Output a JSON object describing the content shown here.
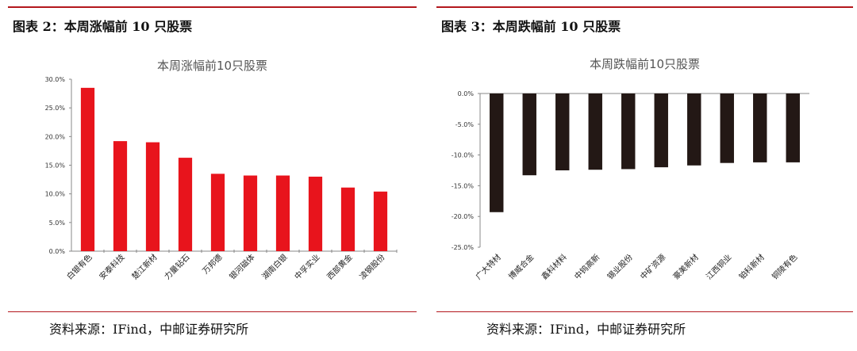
{
  "left_panel": {
    "figure_title": "图表 2：本周涨幅前 10 只股票",
    "source": "资料来源：IFind，中邮证券研究所"
  },
  "right_panel": {
    "figure_title": "图表 3：本周跌幅前 10 只股票",
    "source": "资料来源：IFind，中邮证券研究所"
  },
  "colors": {
    "rule": "#b3171d",
    "up_bar": "#e8141c",
    "down_bar": "#231815"
  },
  "chart_data": [
    {
      "type": "bar",
      "title": "本周涨幅前10只股票",
      "categories": [
        "白银有色",
        "安泰科技",
        "楚江新材",
        "力量钻石",
        "万邦德",
        "银河磁体",
        "湖南白银",
        "中孚实业",
        "西部黄金",
        "凌钢股份"
      ],
      "values": [
        28.5,
        19.2,
        19.0,
        16.3,
        13.5,
        13.2,
        13.2,
        13.0,
        11.1,
        10.4
      ],
      "ylim": [
        0,
        30
      ],
      "yticks": [
        "30.0%",
        "25.0%",
        "20.0%",
        "15.0%",
        "10.0%",
        "5.0%",
        "0.0%"
      ],
      "xlabel": "",
      "ylabel": "",
      "grid": false,
      "legend": false
    },
    {
      "type": "bar",
      "title": "本周跌幅前10只股票",
      "categories": [
        "广大特材",
        "博威合金",
        "鑫科材料",
        "中钨高新",
        "锡业股份",
        "中矿资源",
        "豪美新材",
        "江西铜业",
        "铂科新材",
        "铜陵有色"
      ],
      "values": [
        -19.3,
        -13.3,
        -12.5,
        -12.4,
        -12.3,
        -12.0,
        -11.7,
        -11.3,
        -11.2,
        -11.2
      ],
      "ylim": [
        -25,
        0
      ],
      "yticks": [
        "0.0%",
        "-5.0%",
        "-10.0%",
        "-15.0%",
        "-20.0%",
        "-25.0%"
      ],
      "xlabel": "",
      "ylabel": "",
      "grid": false,
      "legend": false
    }
  ]
}
